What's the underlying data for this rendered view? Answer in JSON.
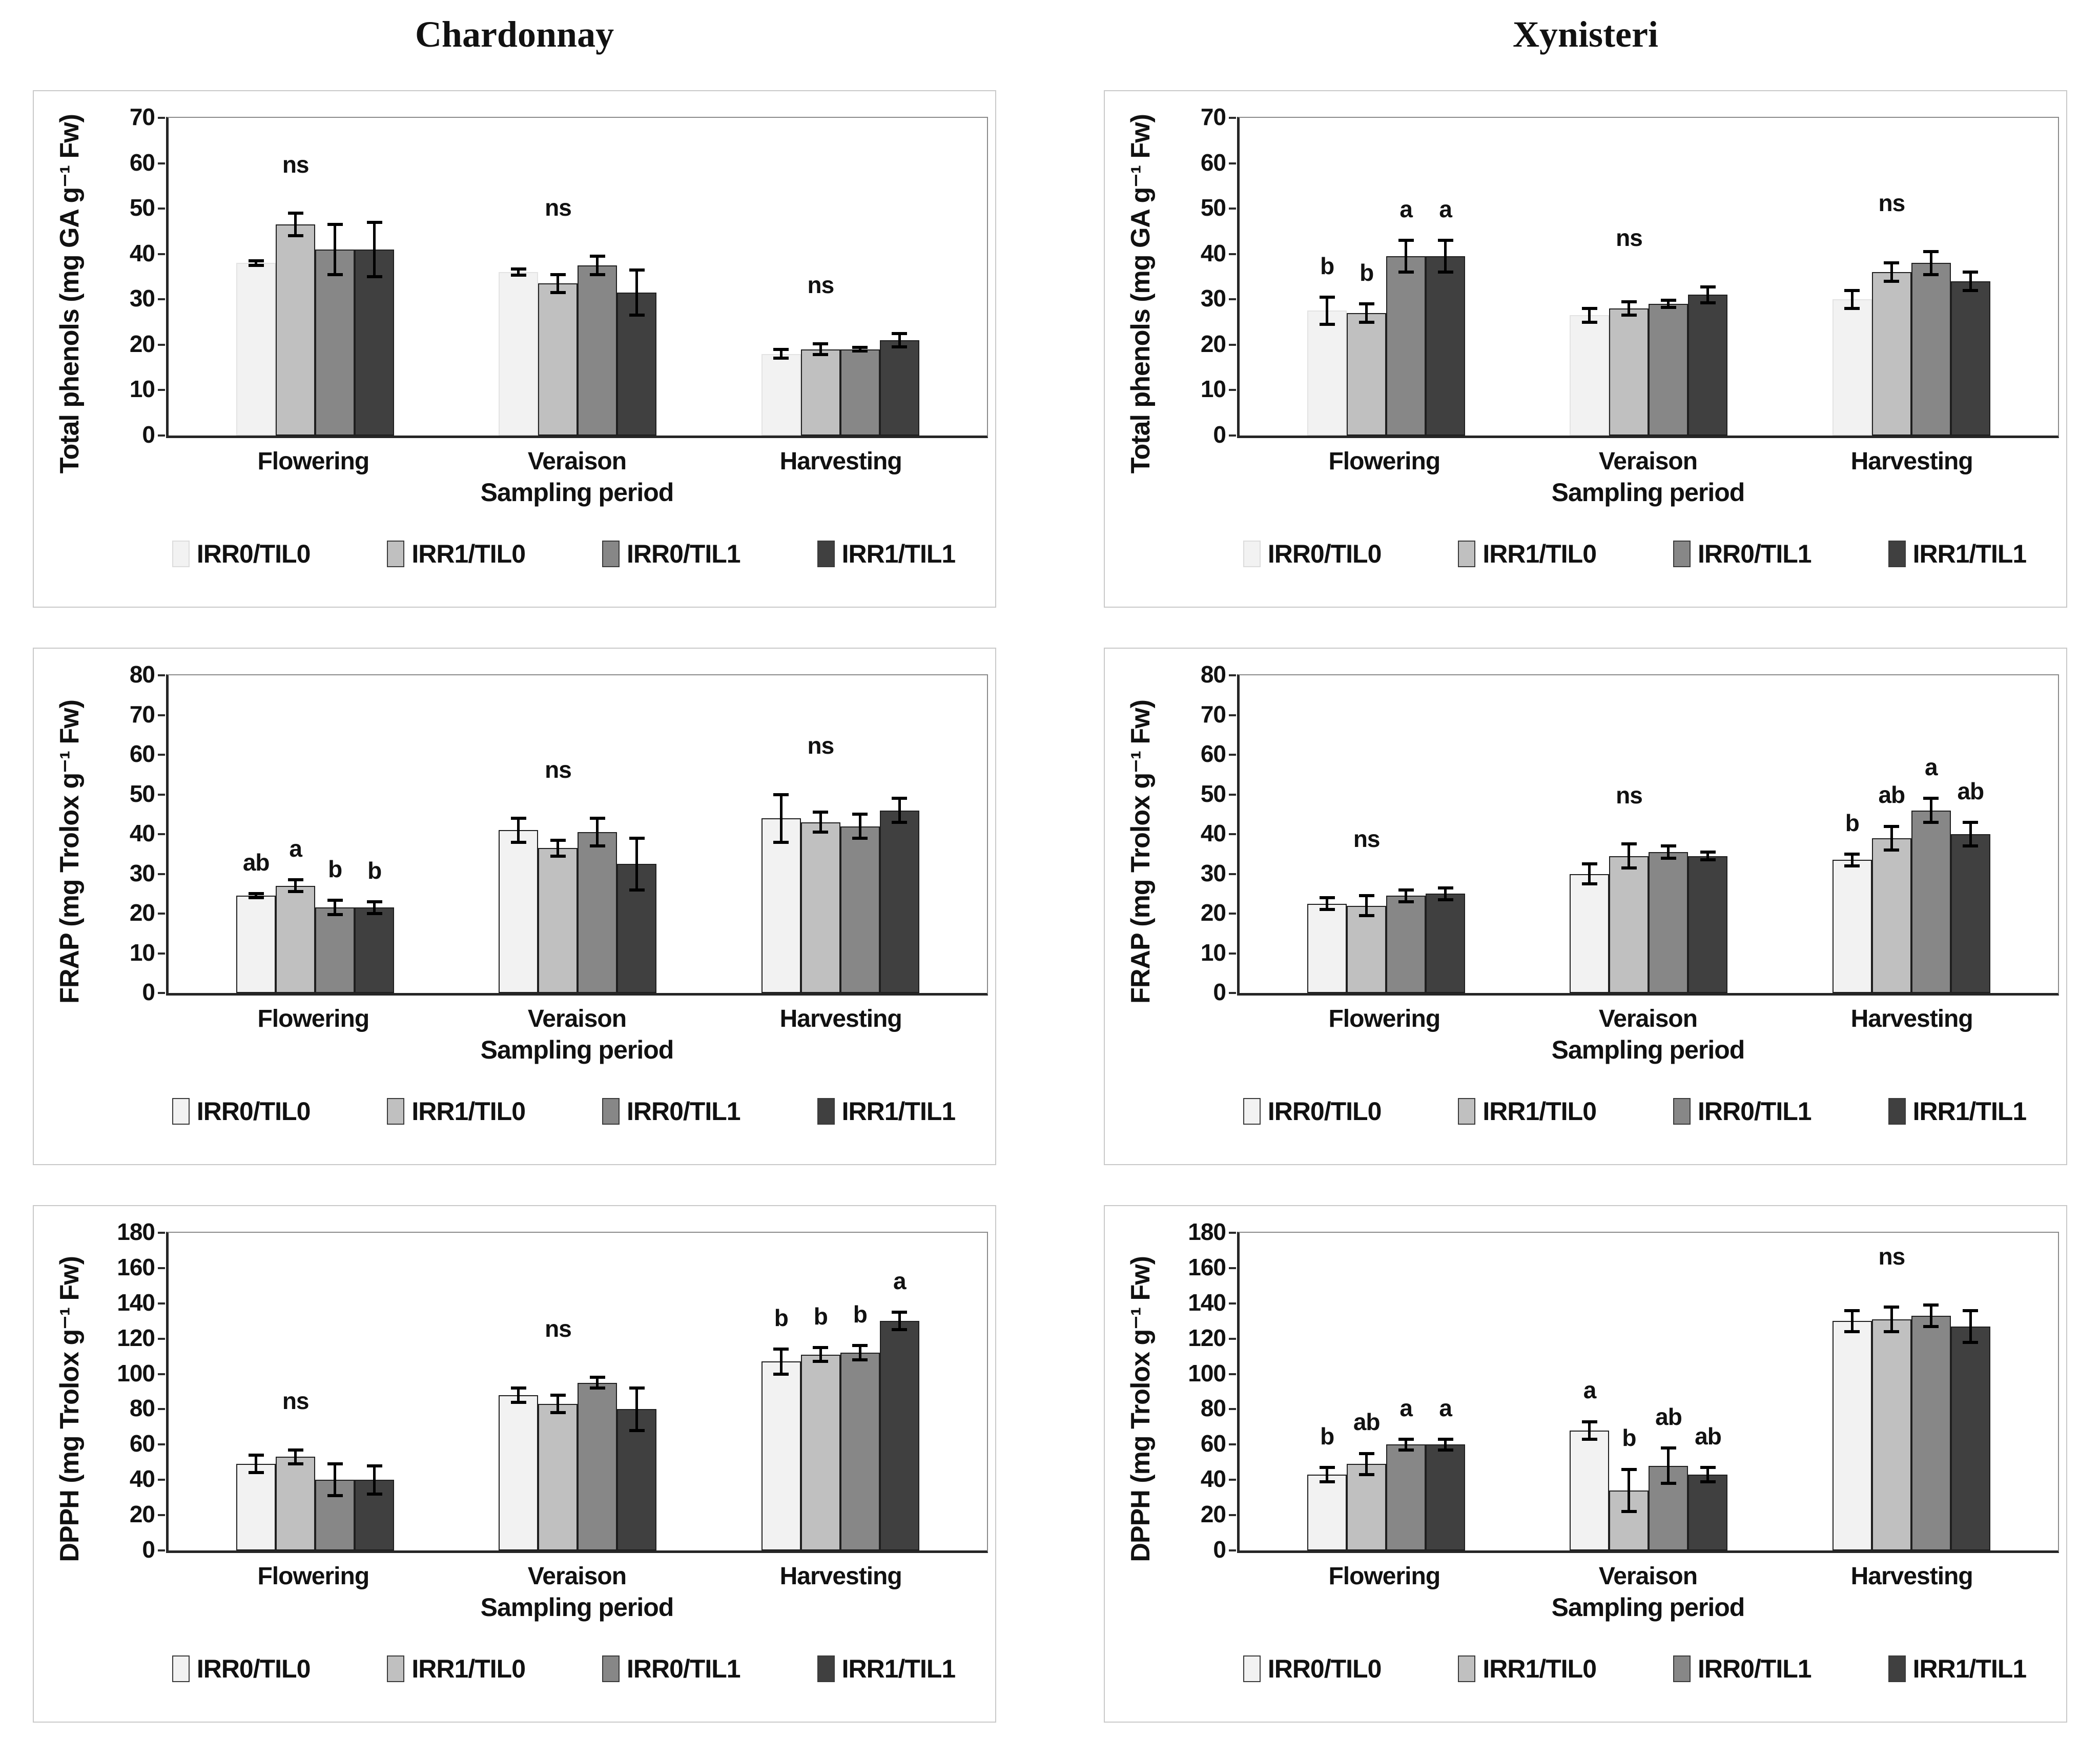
{
  "column_titles": [
    "Chardonnay",
    "Xynisteri"
  ],
  "xlabel": "Sampling period",
  "categories": [
    "Flowering",
    "Veraison",
    "Harvesting"
  ],
  "legend": {
    "labels": [
      "IRR0/TIL0",
      "IRR1/TIL0",
      "IRR0/TIL1",
      "IRR1/TIL1"
    ],
    "colors": [
      "#f2f2f2",
      "#c0c0c0",
      "#878787",
      "#404040"
    ]
  },
  "chart_data": [
    {
      "type": "bar",
      "variety": "Chardonnay",
      "ylabel": "Total phenols (mg GA g⁻¹ Fw)",
      "xlabel": "Sampling period",
      "ylim": [
        0,
        70
      ],
      "ystep": 10,
      "grid": false,
      "legend_position": "bottom",
      "first_series_border": false,
      "categories": [
        "Flowering",
        "Veraison",
        "Harvesting"
      ],
      "series": [
        {
          "name": "IRR0/TIL0",
          "values": [
            38,
            36,
            18
          ],
          "errors": [
            0.5,
            0.7,
            1
          ]
        },
        {
          "name": "IRR1/TIL0",
          "values": [
            46.5,
            33.5,
            19
          ],
          "errors": [
            2.5,
            2,
            1.2
          ]
        },
        {
          "name": "IRR0/TIL1",
          "values": [
            41,
            37.5,
            19
          ],
          "errors": [
            5.5,
            2,
            0.4
          ]
        },
        {
          "name": "IRR1/TIL1",
          "values": [
            41,
            31.5,
            21
          ],
          "errors": [
            6,
            5,
            1.5
          ]
        }
      ],
      "annotations": [
        {
          "category": "Flowering",
          "type": "ns"
        },
        {
          "category": "Veraison",
          "type": "ns"
        },
        {
          "category": "Harvesting",
          "type": "ns"
        }
      ]
    },
    {
      "type": "bar",
      "variety": "Xynisteri",
      "ylabel": "Total phenols (mg GA g⁻¹ Fw)",
      "xlabel": "Sampling period",
      "ylim": [
        0,
        70
      ],
      "ystep": 10,
      "grid": false,
      "legend_position": "bottom",
      "first_series_border": false,
      "categories": [
        "Flowering",
        "Veraison",
        "Harvesting"
      ],
      "series": [
        {
          "name": "IRR0/TIL0",
          "values": [
            27.5,
            26.5,
            30
          ],
          "errors": [
            3,
            1.5,
            2
          ]
        },
        {
          "name": "IRR1/TIL0",
          "values": [
            27,
            28,
            36
          ],
          "errors": [
            2,
            1.5,
            2
          ]
        },
        {
          "name": "IRR0/TIL1",
          "values": [
            39.5,
            29,
            38
          ],
          "errors": [
            3.5,
            0.8,
            2.5
          ]
        },
        {
          "name": "IRR1/TIL1",
          "values": [
            39.5,
            31,
            34
          ],
          "errors": [
            3.5,
            1.8,
            2
          ]
        }
      ],
      "annotations": [
        {
          "category": "Flowering",
          "letters": [
            "b",
            "b",
            "a",
            "a"
          ]
        },
        {
          "category": "Veraison",
          "type": "ns"
        },
        {
          "category": "Harvesting",
          "type": "ns"
        }
      ]
    },
    {
      "type": "bar",
      "variety": "Chardonnay",
      "ylabel": "FRAP (mg Trolox g⁻¹ Fw)",
      "xlabel": "Sampling period",
      "ylim": [
        0,
        80
      ],
      "ystep": 10,
      "grid": false,
      "legend_position": "bottom",
      "first_series_border": true,
      "categories": [
        "Flowering",
        "Veraison",
        "Harvesting"
      ],
      "series": [
        {
          "name": "IRR0/TIL0",
          "values": [
            24.5,
            41,
            44
          ],
          "errors": [
            0.5,
            3,
            6
          ]
        },
        {
          "name": "IRR1/TIL0",
          "values": [
            27,
            36.5,
            43
          ],
          "errors": [
            1.5,
            2,
            2.5
          ]
        },
        {
          "name": "IRR0/TIL1",
          "values": [
            21.5,
            40.5,
            42
          ],
          "errors": [
            1.8,
            3.5,
            3
          ]
        },
        {
          "name": "IRR1/TIL1",
          "values": [
            21.5,
            32.5,
            46
          ],
          "errors": [
            1.5,
            6.5,
            3
          ]
        }
      ],
      "annotations": [
        {
          "category": "Flowering",
          "letters": [
            "ab",
            "a",
            "b",
            "b"
          ]
        },
        {
          "category": "Veraison",
          "type": "ns"
        },
        {
          "category": "Harvesting",
          "type": "ns"
        }
      ]
    },
    {
      "type": "bar",
      "variety": "Xynisteri",
      "ylabel": "FRAP (mg Trolox g⁻¹ Fw)",
      "xlabel": "Sampling period",
      "ylim": [
        0,
        80
      ],
      "ystep": 10,
      "grid": false,
      "legend_position": "bottom",
      "first_series_border": true,
      "categories": [
        "Flowering",
        "Veraison",
        "Harvesting"
      ],
      "series": [
        {
          "name": "IRR0/TIL0",
          "values": [
            22.5,
            30,
            33.5
          ],
          "errors": [
            1.5,
            2.5,
            1.5
          ]
        },
        {
          "name": "IRR1/TIL0",
          "values": [
            22,
            34.5,
            39
          ],
          "errors": [
            2.5,
            3,
            3
          ]
        },
        {
          "name": "IRR0/TIL1",
          "values": [
            24.5,
            35.5,
            46
          ],
          "errors": [
            1.5,
            1.5,
            3
          ]
        },
        {
          "name": "IRR1/TIL1",
          "values": [
            25,
            34.5,
            40
          ],
          "errors": [
            1.5,
            1,
            3
          ]
        }
      ],
      "annotations": [
        {
          "category": "Flowering",
          "type": "ns"
        },
        {
          "category": "Veraison",
          "type": "ns"
        },
        {
          "category": "Harvesting",
          "letters": [
            "b",
            "ab",
            "a",
            "ab"
          ]
        }
      ]
    },
    {
      "type": "bar",
      "variety": "Chardonnay",
      "ylabel": "DPPH (mg Trolox g⁻¹ Fw)",
      "xlabel": "Sampling period",
      "ylim": [
        0,
        180
      ],
      "ystep": 20,
      "grid": false,
      "legend_position": "bottom",
      "first_series_border": true,
      "categories": [
        "Flowering",
        "Veraison",
        "Harvesting"
      ],
      "series": [
        {
          "name": "IRR0/TIL0",
          "values": [
            49,
            88,
            107
          ],
          "errors": [
            5,
            4,
            7
          ]
        },
        {
          "name": "IRR1/TIL0",
          "values": [
            53,
            83,
            111
          ],
          "errors": [
            4,
            5,
            4
          ]
        },
        {
          "name": "IRR0/TIL1",
          "values": [
            40,
            95,
            112
          ],
          "errors": [
            9,
            3,
            4
          ]
        },
        {
          "name": "IRR1/TIL1",
          "values": [
            40,
            80,
            130
          ],
          "errors": [
            8,
            12,
            5
          ]
        }
      ],
      "annotations": [
        {
          "category": "Flowering",
          "type": "ns"
        },
        {
          "category": "Veraison",
          "type": "ns"
        },
        {
          "category": "Harvesting",
          "letters": [
            "b",
            "b",
            "b",
            "a"
          ]
        }
      ]
    },
    {
      "type": "bar",
      "variety": "Xynisteri",
      "ylabel": "DPPH (mg Trolox g⁻¹ Fw)",
      "xlabel": "Sampling period",
      "ylim": [
        0,
        180
      ],
      "ystep": 20,
      "grid": false,
      "legend_position": "bottom",
      "first_series_border": true,
      "categories": [
        "Flowering",
        "Veraison",
        "Harvesting"
      ],
      "series": [
        {
          "name": "IRR0/TIL0",
          "values": [
            43,
            68,
            130
          ],
          "errors": [
            4,
            5,
            6
          ]
        },
        {
          "name": "IRR1/TIL0",
          "values": [
            49,
            34,
            131
          ],
          "errors": [
            6,
            12,
            7
          ]
        },
        {
          "name": "IRR0/TIL1",
          "values": [
            60,
            48,
            133
          ],
          "errors": [
            3,
            10,
            6
          ]
        },
        {
          "name": "IRR1/TIL1",
          "values": [
            60,
            43,
            127
          ],
          "errors": [
            3,
            4,
            9
          ]
        }
      ],
      "annotations": [
        {
          "category": "Flowering",
          "letters": [
            "b",
            "ab",
            "a",
            "a"
          ]
        },
        {
          "category": "Veraison",
          "letters": [
            "a",
            "b",
            "ab",
            "ab"
          ]
        },
        {
          "category": "Harvesting",
          "type": "ns"
        }
      ]
    }
  ]
}
